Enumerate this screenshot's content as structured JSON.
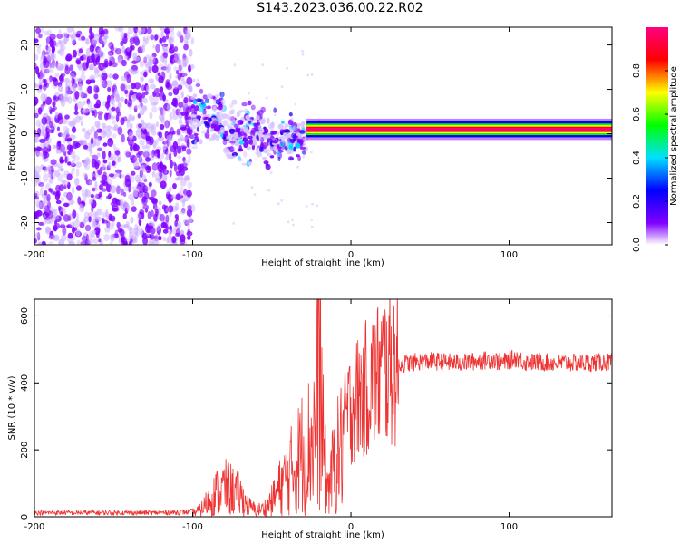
{
  "title": "S143.2023.036.00.22.R02",
  "chart_data": [
    {
      "type": "heatmap",
      "description_of_axes": "x: height of straight line (km); y: frequency (Hz); color: normalized spectral amplitude",
      "xlabel": "Height of straight line (km)",
      "ylabel": "Frequency (Hz)",
      "xlim": [
        -200,
        165
      ],
      "ylim": [
        -25,
        24
      ],
      "xticks": [
        -200,
        -100,
        0,
        100
      ],
      "yticks": [
        -20,
        -10,
        0,
        10,
        20
      ],
      "colorbar": {
        "label": "Normalized spectral amplitude",
        "range": [
          0,
          1
        ],
        "ticks": [
          "0.0",
          "0.2",
          "0.4",
          "0.6",
          "0.8"
        ],
        "colormap": [
          "#ffffff",
          "#8000ff",
          "#0000ff",
          "#00e0ff",
          "#00ff00",
          "#ffff00",
          "#ff0000",
          "#ff0080"
        ]
      },
      "regions": [
        {
          "x": [
            -200,
            -100
          ],
          "freq": [
            -25,
            24
          ],
          "amplitude": 0.08,
          "pattern": "broadband noise"
        },
        {
          "x": [
            -100,
            -28
          ],
          "freq": [
            -10,
            8
          ],
          "amplitude": 0.25,
          "pattern": "scattered clusters"
        },
        {
          "x": [
            -28,
            165
          ],
          "freq": [
            0,
            2
          ],
          "amplitude": 0.9,
          "pattern": "narrow band near 1 Hz"
        }
      ]
    },
    {
      "type": "line",
      "xlabel": "Height of straight line (km)",
      "ylabel": "SNR (10 * v/v)",
      "xlim": [
        -200,
        165
      ],
      "ylim": [
        0,
        650
      ],
      "xticks": [
        -200,
        -100,
        0,
        100
      ],
      "yticks": [
        0,
        200,
        400,
        600
      ],
      "color": "#ee3333",
      "series": [
        {
          "x": [
            -200,
            -180,
            -160,
            -140,
            -120,
            -100,
            -95,
            -90,
            -85,
            -80,
            -75,
            -70,
            -65,
            -60,
            -55,
            -50,
            -45,
            -40,
            -35,
            -30,
            -25,
            -22,
            -20,
            -18,
            -15,
            -10,
            -5,
            0,
            5,
            10,
            15,
            20,
            25,
            30,
            40,
            50,
            60,
            70,
            80,
            90,
            95,
            100,
            105,
            110,
            120,
            130,
            140,
            150,
            160,
            165
          ],
          "y": [
            12,
            12,
            12,
            12,
            12,
            15,
            25,
            60,
            90,
            110,
            100,
            80,
            40,
            25,
            30,
            60,
            110,
            150,
            200,
            250,
            280,
            350,
            620,
            300,
            100,
            200,
            280,
            330,
            360,
            390,
            410,
            440,
            450,
            455,
            462,
            465,
            462,
            460,
            465,
            470,
            460,
            468,
            475,
            462,
            462,
            460,
            460,
            460,
            462,
            462
          ]
        }
      ]
    }
  ]
}
